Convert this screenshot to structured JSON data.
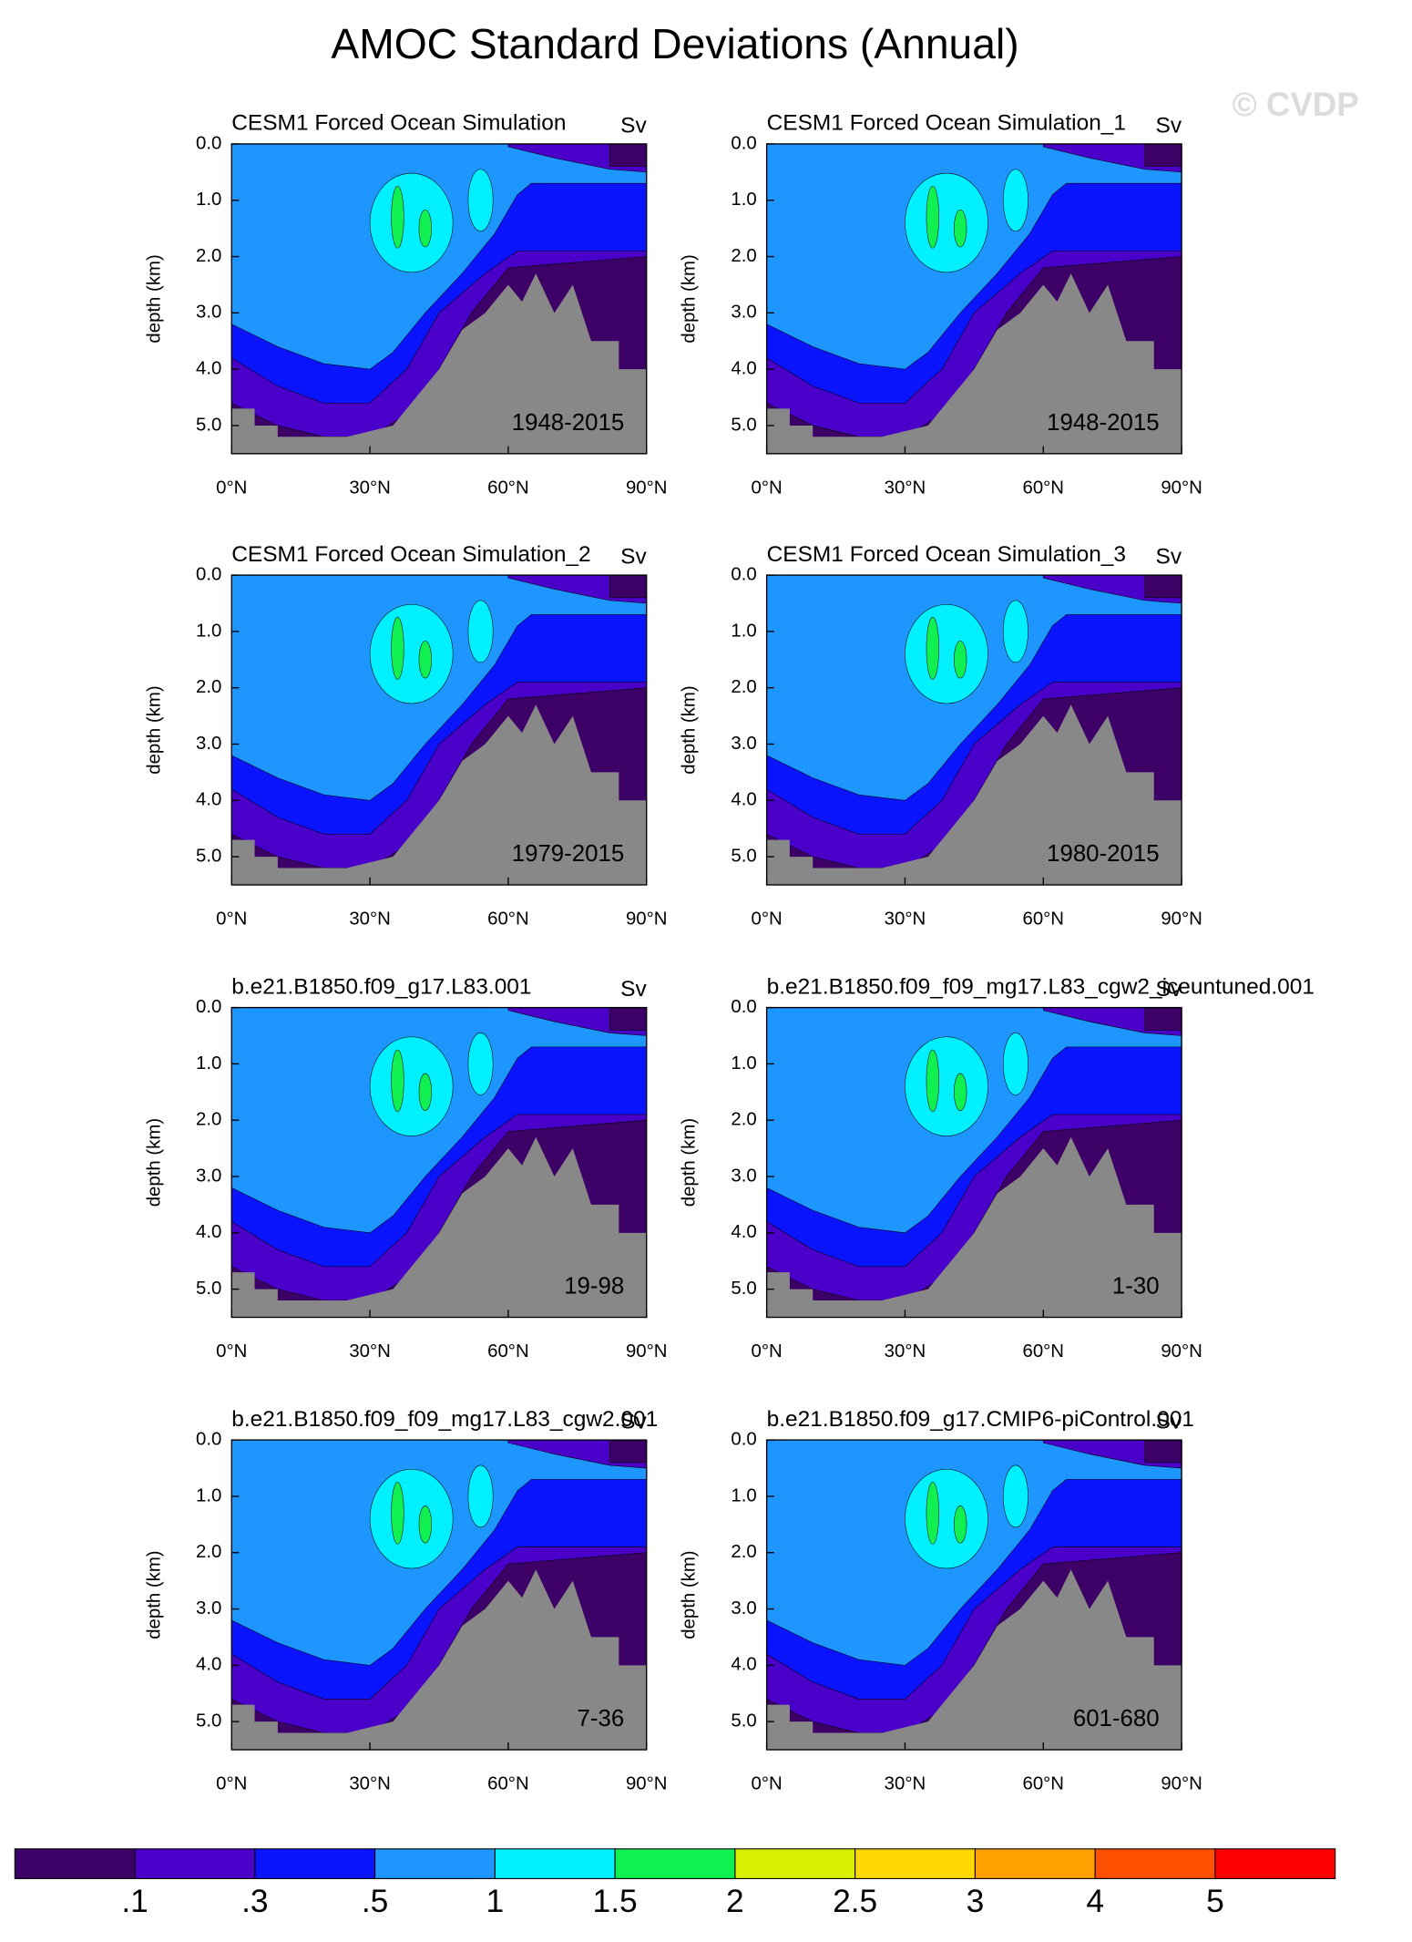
{
  "chart_data": {
    "type": "contour",
    "title": "AMOC Standard Deviations (Annual)",
    "watermark": "© CVDP",
    "ylabel": "depth (km)",
    "xlim": [
      0,
      90
    ],
    "ylim": [
      0,
      5.5
    ],
    "xticks": [
      {
        "value": 0,
        "label": "0°N"
      },
      {
        "value": 30,
        "label": "30°N"
      },
      {
        "value": 60,
        "label": "60°N"
      },
      {
        "value": 90,
        "label": "90°N"
      }
    ],
    "yticks": [
      {
        "value": 0,
        "label": "0.0"
      },
      {
        "value": 1,
        "label": "1.0"
      },
      {
        "value": 2,
        "label": "2.0"
      },
      {
        "value": 3,
        "label": "3.0"
      },
      {
        "value": 4,
        "label": "4.0"
      },
      {
        "value": 5,
        "label": "5.0"
      }
    ],
    "panels": [
      {
        "title": "CESM1 Forced Ocean Simulation",
        "units": "Sv",
        "period": "1948-2015"
      },
      {
        "title": "CESM1 Forced Ocean Simulation_1",
        "units": "Sv",
        "period": "1948-2015"
      },
      {
        "title": "CESM1 Forced Ocean Simulation_2",
        "units": "Sv",
        "period": "1979-2015"
      },
      {
        "title": "CESM1 Forced Ocean Simulation_3",
        "units": "Sv",
        "period": "1980-2015"
      },
      {
        "title": "b.e21.B1850.f09_g17.L83.001",
        "units": "Sv",
        "period": "19-98"
      },
      {
        "title": "b.e21.B1850.f09_f09_mg17.L83_cgw2_iceuntuned.001",
        "units": "Sv",
        "period": "1-30"
      },
      {
        "title": "b.e21.B1850.f09_f09_mg17.L83_cgw2.001",
        "units": "Sv",
        "period": "7-36"
      },
      {
        "title": "b.e21.B1850.f09_g17.CMIP6-piControl.001",
        "units": "Sv",
        "period": "601-680"
      }
    ],
    "colorbar": {
      "colors": [
        "#3c0066",
        "#4a00c8",
        "#0a14ff",
        "#1e96ff",
        "#00f0ff",
        "#10f050",
        "#d8f000",
        "#ffd700",
        "#ffa000",
        "#ff5000",
        "#ff0000"
      ],
      "labels": [
        {
          "value": 0.1,
          "label": ".1"
        },
        {
          "value": 0.3,
          "label": ".3"
        },
        {
          "value": 0.5,
          "label": ".5"
        },
        1,
        1.5,
        2,
        2.5,
        3,
        4,
        5
      ]
    }
  }
}
